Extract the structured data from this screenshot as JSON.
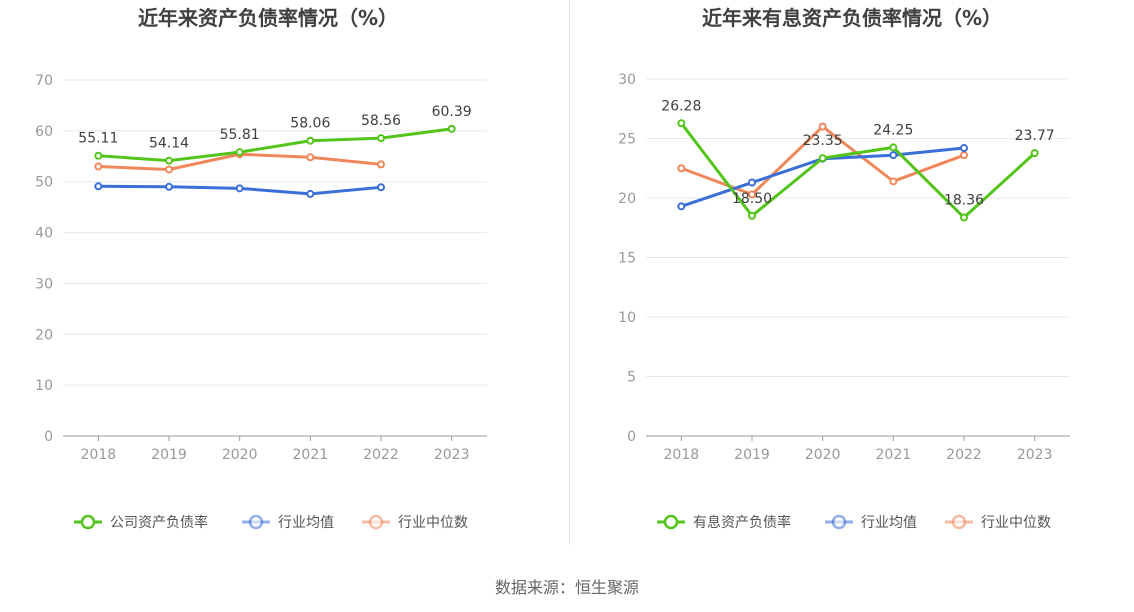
{
  "source_note": "数据来源：恒生聚源",
  "chart_data": [
    {
      "type": "line",
      "title": "近年来资产负债率情况（%）",
      "xlabel": "",
      "ylabel": "",
      "categories": [
        "2018",
        "2019",
        "2020",
        "2021",
        "2022",
        "2023"
      ],
      "ylim": [
        0,
        70
      ],
      "yticks": [
        0,
        10,
        20,
        30,
        40,
        50,
        60,
        70
      ],
      "grid": true,
      "legend_position": "bottom",
      "series": [
        {
          "name": "公司资产负债率",
          "color": "#52c41a",
          "values": [
            55.11,
            54.14,
            55.81,
            58.06,
            58.56,
            60.39
          ],
          "data_labels": [
            "55.11",
            "54.14",
            "55.81",
            "58.06",
            "58.56",
            "60.39"
          ]
        },
        {
          "name": "行业均值",
          "color": "#3a6fd8",
          "values": [
            49.1,
            49.0,
            48.7,
            47.6,
            48.9,
            null
          ]
        },
        {
          "name": "行业中位数",
          "color": "#f0875a",
          "values": [
            53.0,
            52.4,
            55.4,
            54.8,
            53.4,
            null
          ]
        }
      ]
    },
    {
      "type": "line",
      "title": "近年来有息资产负债率情况（%）",
      "xlabel": "",
      "ylabel": "",
      "categories": [
        "2018",
        "2019",
        "2020",
        "2021",
        "2022",
        "2023"
      ],
      "ylim": [
        0,
        30
      ],
      "yticks": [
        0,
        5,
        10,
        15,
        20,
        25,
        30
      ],
      "grid": true,
      "legend_position": "bottom",
      "series": [
        {
          "name": "有息资产负债率",
          "color": "#52c41a",
          "values": [
            26.28,
            18.5,
            23.35,
            24.25,
            18.36,
            23.77
          ],
          "data_labels": [
            "26.28",
            "18.50",
            "23.35",
            "24.25",
            "18.36",
            "23.77"
          ]
        },
        {
          "name": "行业均值",
          "color": "#3a6fd8",
          "values": [
            19.3,
            21.3,
            23.3,
            23.6,
            24.2,
            null
          ]
        },
        {
          "name": "行业中位数",
          "color": "#f0875a",
          "values": [
            22.5,
            20.3,
            26.0,
            21.4,
            23.6,
            null
          ]
        }
      ]
    }
  ]
}
